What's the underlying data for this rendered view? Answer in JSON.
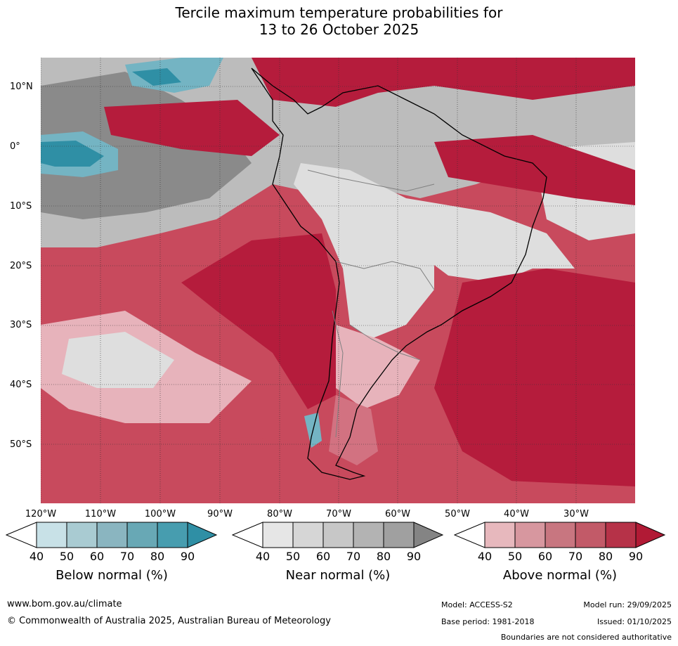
{
  "title_line1": "Tercile maximum temperature probabilities for",
  "title_line2": "13 to 26 October 2025",
  "map": {
    "lat_labels": [
      "10°N",
      "0°",
      "10°S",
      "20°S",
      "30°S",
      "40°S",
      "50°S"
    ],
    "lon_labels": [
      "120°W",
      "110°W",
      "100°W",
      "90°W",
      "80°W",
      "70°W",
      "60°W",
      "50°W",
      "40°W",
      "30°W"
    ],
    "colors": {
      "ocean_base": "#c84a5d",
      "above_high": "#b51c3c",
      "above_mid": "#d27281",
      "above_low": "#e7b3bb",
      "near_light": "#dedede",
      "near_mid": "#bcbcbc",
      "near_dark": "#8a8a8a",
      "below_mid": "#74b4c3",
      "below_high": "#2f8fa5"
    }
  },
  "colorbars": {
    "below": {
      "title": "Below normal (%)",
      "ticks": [
        "40",
        "50",
        "60",
        "70",
        "80",
        "90"
      ],
      "colors": [
        "#c8e1e7",
        "#a9cbd2",
        "#8ab5c0",
        "#68a8b5",
        "#479daf",
        "#2f8fa5"
      ]
    },
    "near": {
      "title": "Near normal (%)",
      "ticks": [
        "40",
        "50",
        "60",
        "70",
        "80",
        "90"
      ],
      "colors": [
        "#e6e6e6",
        "#d6d6d6",
        "#c7c7c7",
        "#b3b3b3",
        "#a0a0a0",
        "#848484"
      ]
    },
    "above": {
      "title": "Above normal (%)",
      "ticks": [
        "40",
        "50",
        "60",
        "70",
        "80",
        "90"
      ],
      "colors": [
        "#e7b8bd",
        "#d7979f",
        "#c87680",
        "#c25a68",
        "#b63248",
        "#b11a35"
      ]
    }
  },
  "footer": {
    "website": "www.bom.gov.au/climate",
    "copyright": "© Commonwealth of Australia 2025, Australian Bureau of Meteorology",
    "model": "Model: ACCESS-S2",
    "base_period": "Base period: 1981-2018",
    "model_run": "Model run: 29/09/2025",
    "issued": "Issued: 01/10/2025",
    "disclaimer": "Boundaries are not considered authoritative"
  }
}
